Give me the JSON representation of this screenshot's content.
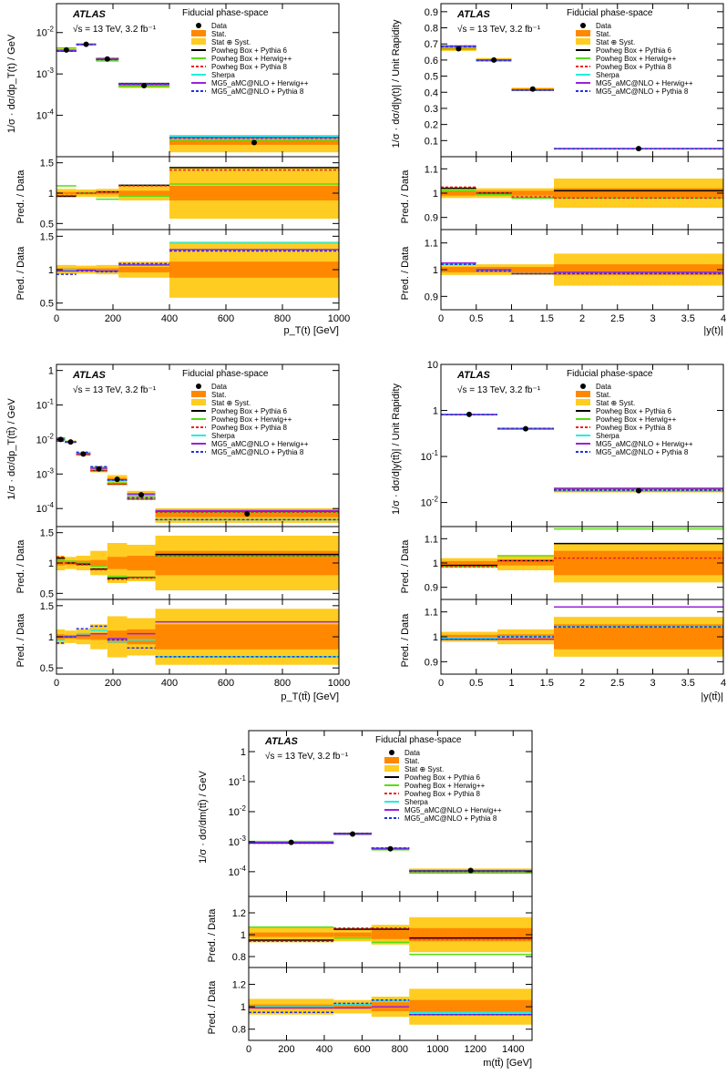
{
  "chart_data": [
    {
      "type": "line",
      "id": "pt_t",
      "xlabel": "p_T(t) [GeV]",
      "ylabel": "1/σ · dσ/dp_T(t) / GeV",
      "xlim": [
        0,
        1000
      ],
      "ylog": true,
      "ylim": [
        1e-05,
        0.05
      ],
      "xticks": [
        0,
        200,
        400,
        600,
        800,
        1000
      ],
      "yticks": [
        0.01,
        0.001,
        0.0001
      ],
      "ytick_labels": [
        "10^-2",
        "10^-3",
        "10^-4"
      ],
      "label_atlas": "ATLAS",
      "label_energy": "√s = 13 TeV, 3.2 fb⁻¹",
      "label_phase": "Fiducial phase-space",
      "bins": [
        0,
        70,
        140,
        220,
        400,
        1000
      ],
      "data": [
        0.0038,
        0.0052,
        0.0023,
        0.00052,
        2.2e-05
      ],
      "ratio_ylabel": "Pred. / Data",
      "ratio_ylim": [
        0.4,
        1.6
      ],
      "ratio_yticks": [
        0.5,
        1,
        1.5
      ],
      "ratio1": {
        "stat": [
          0.02,
          0.02,
          0.02,
          0.04,
          0.12
        ],
        "syst": [
          0.07,
          0.06,
          0.07,
          0.12,
          0.42
        ],
        "lines": [
          {
            "name": "Powheg Box + Pythia 6",
            "values": [
              0.95,
              1.0,
              1.02,
              1.13,
              1.42
            ]
          },
          {
            "name": "Powheg Box + Herwig++",
            "values": [
              1.12,
              1.0,
              0.9,
              0.95,
              1.15
            ]
          },
          {
            "name": "Powheg Box + Pythia 8",
            "values": [
              0.96,
              1.0,
              1.02,
              1.12,
              1.38
            ]
          }
        ]
      },
      "ratio2": {
        "stat": [
          0.02,
          0.02,
          0.02,
          0.04,
          0.12
        ],
        "syst": [
          0.07,
          0.06,
          0.07,
          0.12,
          0.42
        ],
        "lines": [
          {
            "name": "Sherpa",
            "values": [
              1.0,
              0.99,
              0.98,
              1.08,
              1.4
            ]
          },
          {
            "name": "MG5_aMC@NLO + Herwig++",
            "values": [
              0.98,
              0.99,
              0.98,
              1.07,
              1.3
            ]
          },
          {
            "name": "MG5_aMC@NLO + Pythia 8",
            "values": [
              0.93,
              0.98,
              0.97,
              1.09,
              1.28
            ]
          }
        ]
      }
    },
    {
      "type": "line",
      "id": "y_t",
      "xlabel": "|y(t)|",
      "ylabel": "1/σ · dσ/d|y(t)| / Unit Rapidity",
      "xlim": [
        0,
        4
      ],
      "ylog": false,
      "ylim": [
        0,
        0.95
      ],
      "xticks": [
        0,
        0.5,
        1,
        1.5,
        2,
        2.5,
        3,
        3.5,
        4
      ],
      "yticks": [
        0.1,
        0.2,
        0.3,
        0.4,
        0.5,
        0.6,
        0.7,
        0.8,
        0.9
      ],
      "ytick_labels": [
        "0.1",
        "0.2",
        "0.3",
        "0.4",
        "0.5",
        "0.6",
        "0.7",
        "0.8",
        "0.9"
      ],
      "label_atlas": "ATLAS",
      "label_energy": "√s = 13 TeV, 3.2 fb⁻¹",
      "label_phase": "Fiducial phase-space",
      "bins": [
        0,
        0.5,
        1.0,
        1.6,
        4.0
      ],
      "data": [
        0.67,
        0.6,
        0.42,
        0.05
      ],
      "ratio_ylabel": "Pred. / Data",
      "ratio_ylim": [
        0.85,
        1.15
      ],
      "ratio_yticks": [
        0.9,
        1,
        1.1
      ],
      "ratio1": {
        "stat": [
          0.01,
          0.01,
          0.01,
          0.02
        ],
        "syst": [
          0.02,
          0.02,
          0.02,
          0.06
        ],
        "lines": [
          {
            "name": "Powheg Box + Pythia 6",
            "values": [
              1.02,
              1.0,
              0.98,
              1.01
            ]
          },
          {
            "name": "Powheg Box + Herwig++",
            "values": [
              1.01,
              0.995,
              0.98,
              0.98
            ]
          },
          {
            "name": "Powheg Box + Pythia 8",
            "values": [
              1.025,
              1.0,
              0.985,
              0.98
            ]
          }
        ]
      },
      "ratio2": {
        "stat": [
          0.01,
          0.01,
          0.01,
          0.02
        ],
        "syst": [
          0.02,
          0.02,
          0.02,
          0.06
        ],
        "lines": [
          {
            "name": "Sherpa",
            "values": [
              1.02,
              1.0,
              0.985,
              0.99
            ]
          },
          {
            "name": "MG5_aMC@NLO + Herwig++",
            "values": [
              1.025,
              1.0,
              0.985,
              0.99
            ]
          },
          {
            "name": "MG5_aMC@NLO + Pythia 8",
            "values": [
              1.02,
              0.995,
              0.985,
              0.985
            ]
          }
        ]
      }
    },
    {
      "type": "line",
      "id": "pt_tt",
      "xlabel": "p_T(tt̄) [GeV]",
      "ylabel": "1/σ · dσ/dp_T(tt̄) / GeV",
      "xlim": [
        0,
        1000
      ],
      "ylog": true,
      "ylim": [
        3e-05,
        1.5
      ],
      "xticks": [
        0,
        200,
        400,
        600,
        800,
        1000
      ],
      "yticks": [
        1,
        0.1,
        0.01,
        0.001,
        0.0001
      ],
      "ytick_labels": [
        "1",
        "10^-1",
        "10^-2",
        "10^-3",
        "10^-4"
      ],
      "label_atlas": "ATLAS",
      "label_energy": "√s = 13 TeV, 3.2 fb⁻¹",
      "label_phase": "Fiducial phase-space",
      "bins": [
        0,
        30,
        70,
        120,
        180,
        250,
        350,
        1000
      ],
      "data": [
        0.01,
        0.0085,
        0.0038,
        0.0014,
        0.0007,
        0.00025,
        7e-05
      ],
      "ratio_ylabel": "Pred. / Data",
      "ratio_ylim": [
        0.4,
        1.6
      ],
      "ratio_yticks": [
        0.5,
        1,
        1.5
      ],
      "ratio1": {
        "stat": [
          0.04,
          0.03,
          0.04,
          0.05,
          0.1,
          0.12,
          0.2
        ],
        "syst": [
          0.12,
          0.1,
          0.12,
          0.2,
          0.33,
          0.3,
          0.45
        ],
        "lines": [
          {
            "name": "Powheg Box + Pythia 6",
            "values": [
              1.08,
              1.0,
              0.98,
              0.9,
              0.75,
              0.76,
              1.14
            ]
          },
          {
            "name": "Powheg Box + Herwig++",
            "values": [
              1.05,
              1.03,
              1.02,
              0.95,
              0.78,
              0.75,
              1.1
            ]
          },
          {
            "name": "Powheg Box + Pythia 8",
            "values": [
              1.1,
              1.0,
              0.97,
              0.89,
              0.73,
              0.75,
              1.12
            ]
          }
        ]
      },
      "ratio2": {
        "stat": [
          0.04,
          0.03,
          0.04,
          0.05,
          0.1,
          0.12,
          0.2
        ],
        "syst": [
          0.12,
          0.1,
          0.12,
          0.2,
          0.33,
          0.3,
          0.45
        ],
        "lines": [
          {
            "name": "Sherpa",
            "values": [
              0.95,
              1.0,
              1.05,
              1.1,
              0.92,
              0.95,
              0.68
            ]
          },
          {
            "name": "MG5_aMC@NLO + Herwig++",
            "values": [
              1.0,
              1.0,
              1.02,
              1.05,
              0.97,
              1.05,
              1.24
            ]
          },
          {
            "name": "MG5_aMC@NLO + Pythia 8",
            "values": [
              0.9,
              1.0,
              1.13,
              1.17,
              0.95,
              0.82,
              0.68
            ]
          }
        ]
      }
    },
    {
      "type": "line",
      "id": "y_tt",
      "xlabel": "|y(tt̄)|",
      "ylabel": "1/σ · dσ/d|y(tt̄)| / Unit Rapidity",
      "xlim": [
        0,
        4
      ],
      "ylog": true,
      "ylim": [
        0.003,
        10
      ],
      "xticks": [
        0,
        0.5,
        1,
        1.5,
        2,
        2.5,
        3,
        3.5,
        4
      ],
      "yticks": [
        10,
        1,
        0.1,
        0.01
      ],
      "ytick_labels": [
        "10",
        "1",
        "10^-1",
        "10^-2"
      ],
      "label_atlas": "ATLAS",
      "label_energy": "√s = 13 TeV, 3.2 fb⁻¹",
      "label_phase": "Fiducial phase-space",
      "bins": [
        0,
        0.8,
        1.6,
        4.0
      ],
      "data": [
        0.82,
        0.4,
        0.018
      ],
      "ratio_ylabel": "Pred. / Data",
      "ratio_ylim": [
        0.85,
        1.15
      ],
      "ratio_yticks": [
        0.9,
        1,
        1.1
      ],
      "ratio1": {
        "stat": [
          0.008,
          0.01,
          0.05
        ],
        "syst": [
          0.02,
          0.03,
          0.08
        ],
        "lines": [
          {
            "name": "Powheg Box + Pythia 6",
            "values": [
              0.99,
              1.01,
              1.08
            ]
          },
          {
            "name": "Powheg Box + Herwig++",
            "values": [
              0.985,
              1.03,
              1.14
            ]
          },
          {
            "name": "Powheg Box + Pythia 8",
            "values": [
              0.985,
              1.01,
              1.02
            ]
          }
        ]
      },
      "ratio2": {
        "stat": [
          0.008,
          0.01,
          0.05
        ],
        "syst": [
          0.02,
          0.03,
          0.08
        ],
        "lines": [
          {
            "name": "Sherpa",
            "values": [
              0.995,
              1.0,
              1.04
            ]
          },
          {
            "name": "MG5_aMC@NLO + Herwig++",
            "values": [
              0.99,
              0.99,
              1.12
            ]
          },
          {
            "name": "MG5_aMC@NLO + Pythia 8",
            "values": [
              0.99,
              1.0,
              1.04
            ]
          }
        ]
      }
    },
    {
      "type": "line",
      "id": "m_tt",
      "xlabel": "m(tt̄) [GeV]",
      "ylabel": "1/σ · dσ/dm(tt̄) / GeV",
      "xlim": [
        0,
        1500
      ],
      "ylog": true,
      "ylim": [
        1.5e-05,
        5
      ],
      "xticks": [
        0,
        200,
        400,
        600,
        800,
        1000,
        1200,
        1400
      ],
      "yticks": [
        1,
        0.1,
        0.01,
        0.001,
        0.0001
      ],
      "ytick_labels": [
        "1",
        "10^-1",
        "10^-2",
        "10^-3",
        "10^-4"
      ],
      "label_atlas": "ATLAS",
      "label_energy": "√s = 13 TeV, 3.2 fb⁻¹",
      "label_phase": "Fiducial phase-space",
      "bins": [
        0,
        450,
        650,
        850,
        1500
      ],
      "data": [
        0.00095,
        0.0018,
        0.00058,
        0.00011
      ],
      "ratio_ylabel": "Pred. / Data",
      "ratio_ylim": [
        0.7,
        1.35
      ],
      "ratio_yticks": [
        0.8,
        1,
        1.2
      ],
      "ratio1": {
        "stat": [
          0.02,
          0.02,
          0.04,
          0.06
        ],
        "syst": [
          0.07,
          0.06,
          0.09,
          0.16
        ],
        "lines": [
          {
            "name": "Powheg Box + Pythia 6",
            "values": [
              0.95,
              1.05,
              1.05,
              0.97
            ]
          },
          {
            "name": "Powheg Box + Herwig++",
            "values": [
              1.07,
              0.97,
              0.93,
              0.82
            ]
          },
          {
            "name": "Powheg Box + Pythia 8",
            "values": [
              0.94,
              1.06,
              1.06,
              0.96
            ]
          }
        ]
      },
      "ratio2": {
        "stat": [
          0.02,
          0.02,
          0.04,
          0.06
        ],
        "syst": [
          0.07,
          0.06,
          0.09,
          0.16
        ],
        "lines": [
          {
            "name": "Sherpa",
            "values": [
              1.0,
              1.02,
              1.05,
              0.95
            ]
          },
          {
            "name": "MG5_aMC@NLO + Herwig++",
            "values": [
              0.99,
              0.99,
              1.0,
              0.93
            ]
          },
          {
            "name": "MG5_aMC@NLO + Pythia 8",
            "values": [
              0.95,
              1.03,
              1.06,
              0.93
            ]
          }
        ]
      }
    }
  ],
  "legend": {
    "data": "Data",
    "stat": "Stat.",
    "syst": "Stat ⊕ Syst.",
    "items": [
      {
        "label": "Powheg Box + Pythia 6",
        "color": "#000000",
        "dash": "solid"
      },
      {
        "label": "Powheg Box + Herwig++",
        "color": "#55dd11",
        "dash": "solid"
      },
      {
        "label": "Powheg Box + Pythia 8",
        "color": "#ee2222",
        "dash": "dotted"
      },
      {
        "label": "Sherpa",
        "color": "#22eedd",
        "dash": "solid"
      },
      {
        "label": "MG5_aMC@NLO + Herwig++",
        "color": "#9922dd",
        "dash": "solid"
      },
      {
        "label": "MG5_aMC@NLO + Pythia 8",
        "color": "#2233dd",
        "dash": "dotted"
      }
    ],
    "stat_color": "#ff8800",
    "syst_color": "#ffcc22"
  }
}
